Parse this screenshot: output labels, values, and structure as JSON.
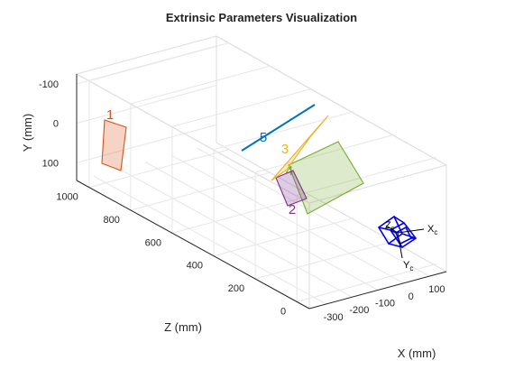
{
  "chart_data": {
    "type": "scatter",
    "title": "Extrinsic Parameters Visualization",
    "xlabel": "X (mm)",
    "ylabel": "Y (mm)",
    "zlabel": "Z (mm)",
    "x_ticks": [
      "-300",
      "-200",
      "-100",
      "0",
      "100"
    ],
    "y_ticks": [
      "-100",
      "0",
      "100"
    ],
    "z_ticks": [
      "0",
      "200",
      "400",
      "600",
      "800",
      "1000"
    ],
    "grid": true,
    "camera": {
      "axis_labels": [
        "X",
        "Y",
        "Z"
      ],
      "subscript": "c"
    },
    "patterns": [
      {
        "id": "1",
        "color": "#d95319",
        "approx_z": 1000,
        "approx_x": -350
      },
      {
        "id": "2",
        "color": "#7e2f8e",
        "approx_z": 500,
        "approx_x": -200
      },
      {
        "id": "3",
        "color": "#edb120",
        "approx_z": 600,
        "approx_x": -200
      },
      {
        "id": "4",
        "color": "#77ac30",
        "approx_z": 500,
        "approx_x": -150
      },
      {
        "id": "5",
        "color": "#0072bd",
        "approx_z": 700,
        "approx_x": -250
      }
    ]
  }
}
